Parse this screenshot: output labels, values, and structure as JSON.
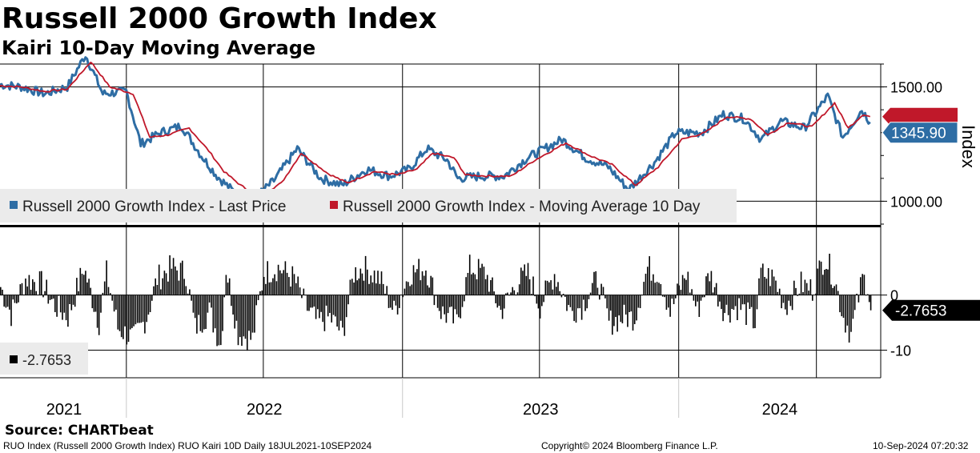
{
  "title": "Russell 2000 Growth Index",
  "subtitle": "Kairi 10-Day Moving Average",
  "source": "Source: CHARTbeat",
  "footer": {
    "left": "RUO Index (Russell 2000 Growth Index) RUO Kairi 10D  Daily 18JUL2021-10SEP2024",
    "center": "Copyright© 2024 Bloomberg Finance L.P.",
    "right": "10-Sep-2024 07:20:32"
  },
  "colors": {
    "price": "#2e6da4",
    "ma": "#c0182a",
    "bars": "#000000",
    "grid": "#000000"
  },
  "chart_data": [
    {
      "type": "line",
      "ylabel": "Index",
      "ylim": [
        900,
        1600
      ],
      "yticks": [
        "1500.00",
        "1000.00"
      ],
      "ytick_values": [
        1500,
        1000
      ],
      "last_value_label": "1345.90",
      "legend": "top-left, below plot",
      "series": [
        {
          "name": "Russell 2000 Growth Index - Last Price",
          "color": "#2e6da4",
          "x": [
            "2021-07-18",
            "2021-08-15",
            "2021-09-15",
            "2021-10-15",
            "2021-11-08",
            "2021-12-01",
            "2022-01-01",
            "2022-01-20",
            "2022-02-15",
            "2022-03-15",
            "2022-04-10",
            "2022-05-01",
            "2022-05-20",
            "2022-06-16",
            "2022-07-15",
            "2022-08-15",
            "2022-09-15",
            "2022-10-13",
            "2022-11-15",
            "2022-12-15",
            "2023-01-10",
            "2023-02-02",
            "2023-03-01",
            "2023-03-15",
            "2023-04-15",
            "2023-05-15",
            "2023-06-15",
            "2023-07-31",
            "2023-08-31",
            "2023-09-30",
            "2023-10-27",
            "2023-11-30",
            "2023-12-28",
            "2024-01-31",
            "2024-02-29",
            "2024-03-28",
            "2024-04-19",
            "2024-05-15",
            "2024-06-15",
            "2024-07-16",
            "2024-08-05",
            "2024-08-30",
            "2024-09-10"
          ],
          "values": [
            1510,
            1500,
            1470,
            1500,
            1640,
            1470,
            1480,
            1250,
            1300,
            1330,
            1200,
            1110,
            1050,
            1000,
            1090,
            1230,
            1100,
            1070,
            1140,
            1110,
            1140,
            1230,
            1180,
            1100,
            1110,
            1110,
            1190,
            1270,
            1190,
            1150,
            1050,
            1170,
            1300,
            1300,
            1380,
            1360,
            1270,
            1350,
            1320,
            1460,
            1280,
            1400,
            1346
          ]
        },
        {
          "name": "Russell 2000 Growth Index - Moving Average 10 Day",
          "color": "#c0182a",
          "x": [
            "2021-07-18",
            "2021-08-15",
            "2021-09-15",
            "2021-10-15",
            "2021-11-15",
            "2021-12-10",
            "2022-01-10",
            "2022-02-01",
            "2022-02-25",
            "2022-03-25",
            "2022-04-20",
            "2022-05-10",
            "2022-06-01",
            "2022-06-25",
            "2022-07-25",
            "2022-08-20",
            "2022-09-25",
            "2022-10-20",
            "2022-11-25",
            "2022-12-25",
            "2023-01-20",
            "2023-02-10",
            "2023-03-10",
            "2023-03-25",
            "2023-04-25",
            "2023-05-25",
            "2023-06-25",
            "2023-08-05",
            "2023-09-05",
            "2023-10-05",
            "2023-11-05",
            "2023-12-05",
            "2024-01-05",
            "2024-02-05",
            "2024-03-05",
            "2024-04-05",
            "2024-04-28",
            "2024-05-25",
            "2024-06-25",
            "2024-07-25",
            "2024-08-12",
            "2024-09-01",
            "2024-09-10"
          ],
          "values": [
            1505,
            1500,
            1480,
            1490,
            1610,
            1500,
            1470,
            1280,
            1290,
            1320,
            1220,
            1130,
            1070,
            1020,
            1080,
            1210,
            1120,
            1080,
            1130,
            1115,
            1140,
            1210,
            1190,
            1115,
            1110,
            1110,
            1180,
            1255,
            1200,
            1160,
            1070,
            1150,
            1270,
            1300,
            1370,
            1360,
            1290,
            1345,
            1325,
            1430,
            1320,
            1380,
            1370
          ]
        }
      ]
    },
    {
      "type": "bar",
      "ylabel": "",
      "ylim": [
        -15,
        12
      ],
      "yticks": [
        "0",
        "-10"
      ],
      "ytick_values": [
        0,
        -10
      ],
      "last_value_label": "-2.7653",
      "legend": "bottom-left",
      "series": [
        {
          "name": "-2.7653",
          "color": "#000000",
          "x": [
            "2021-07-18",
            "2021-08-01",
            "2021-08-20",
            "2021-09-10",
            "2021-09-28",
            "2021-10-15",
            "2021-11-05",
            "2021-11-25",
            "2021-12-05",
            "2021-12-20",
            "2022-01-10",
            "2022-01-27",
            "2022-02-10",
            "2022-03-01",
            "2022-03-20",
            "2022-04-01",
            "2022-04-20",
            "2022-05-05",
            "2022-05-12",
            "2022-05-28",
            "2022-06-16",
            "2022-07-01",
            "2022-07-20",
            "2022-08-10",
            "2022-08-25",
            "2022-09-10",
            "2022-09-26",
            "2022-10-13",
            "2022-10-28",
            "2022-11-10",
            "2022-12-01",
            "2022-12-20",
            "2023-01-10",
            "2023-01-31",
            "2023-02-20",
            "2023-03-13",
            "2023-03-30",
            "2023-04-20",
            "2023-05-10",
            "2023-05-30",
            "2023-06-15",
            "2023-07-01",
            "2023-07-20",
            "2023-08-10",
            "2023-08-25",
            "2023-09-15",
            "2023-09-30",
            "2023-10-20",
            "2023-11-03",
            "2023-11-20",
            "2023-12-05",
            "2023-12-20",
            "2024-01-10",
            "2024-01-25",
            "2024-02-10",
            "2024-03-01",
            "2024-03-20",
            "2024-04-10",
            "2024-04-18",
            "2024-05-05",
            "2024-05-20",
            "2024-06-10",
            "2024-06-25",
            "2024-07-11",
            "2024-07-24",
            "2024-08-05",
            "2024-08-15",
            "2024-08-30",
            "2024-09-06",
            "2024-09-10"
          ],
          "values": [
            1.5,
            -3.5,
            3,
            2,
            -2,
            -4,
            5,
            -5,
            4,
            -6,
            -8,
            -4,
            3,
            5,
            4,
            -6,
            -3,
            -9,
            5,
            -7,
            -8,
            4,
            5,
            3,
            -2,
            -5,
            -4,
            -7,
            4,
            5,
            3,
            -3,
            4,
            5,
            -3,
            -5,
            5,
            4,
            -3,
            2,
            4,
            -2,
            4,
            -3,
            -2,
            3,
            -5,
            -4,
            -4,
            5,
            4,
            -3,
            4,
            -3,
            4,
            -3,
            -2,
            -5,
            4,
            3,
            -2,
            2,
            1,
            7,
            3,
            -4,
            -7,
            3,
            2,
            -2.7653
          ]
        }
      ]
    }
  ],
  "xaxis": {
    "ticks": [
      "2021",
      "2022",
      "2023",
      "2024"
    ]
  }
}
